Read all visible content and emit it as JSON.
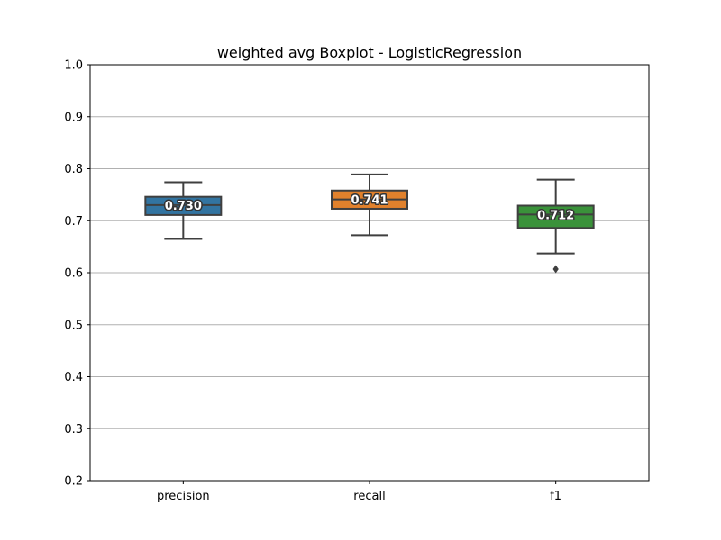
{
  "chart_data": {
    "type": "box",
    "title": "weighted avg Boxplot - LogisticRegression",
    "xlabel": "",
    "ylabel": "",
    "ylim": [
      0.2,
      1.0
    ],
    "yticks": [
      "0.2",
      "0.3",
      "0.4",
      "0.5",
      "0.6",
      "0.7",
      "0.8",
      "0.9",
      "1.0"
    ],
    "grid": "y",
    "categories": [
      "precision",
      "recall",
      "f1"
    ],
    "series": [
      {
        "category": "precision",
        "color": "#3274a1",
        "whisker_low": 0.665,
        "q1": 0.711,
        "median": 0.73,
        "q3": 0.746,
        "whisker_high": 0.774,
        "outliers": [],
        "label": "0.730"
      },
      {
        "category": "recall",
        "color": "#e1812c",
        "whisker_low": 0.672,
        "q1": 0.723,
        "median": 0.741,
        "q3": 0.758,
        "whisker_high": 0.789,
        "outliers": [],
        "label": "0.741"
      },
      {
        "category": "f1",
        "color": "#3a923a",
        "whisker_low": 0.637,
        "q1": 0.686,
        "median": 0.712,
        "q3": 0.729,
        "whisker_high": 0.779,
        "outliers": [
          0.607
        ],
        "label": "0.712"
      }
    ]
  }
}
